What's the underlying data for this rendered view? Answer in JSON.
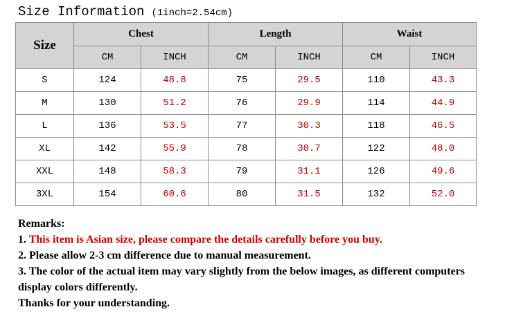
{
  "header": {
    "title": "Size Information",
    "note": "(1inch=2.54cm)"
  },
  "table": {
    "size_header": "Size",
    "groups": [
      "Chest",
      "Length",
      "Waist"
    ],
    "units": [
      "CM",
      "INCH",
      "CM",
      "INCH",
      "CM",
      "INCH"
    ],
    "rows": [
      [
        "S",
        "124",
        "48.8",
        "75",
        "29.5",
        "110",
        "43.3"
      ],
      [
        "M",
        "130",
        "51.2",
        "76",
        "29.9",
        "114",
        "44.9"
      ],
      [
        "L",
        "136",
        "53.5",
        "77",
        "30.3",
        "118",
        "46.5"
      ],
      [
        "XL",
        "142",
        "55.9",
        "78",
        "30.7",
        "122",
        "48.0"
      ],
      [
        "XXL",
        "148",
        "58.3",
        "79",
        "31.1",
        "126",
        "49.6"
      ],
      [
        "3XL",
        "154",
        "60.6",
        "80",
        "31.5",
        "132",
        "52.0"
      ]
    ]
  },
  "remarks": {
    "title": "Remarks:",
    "items": [
      {
        "number": "1.",
        "text": "This item is Asian size, please compare the details carefully before you buy."
      },
      {
        "number": "2.",
        "text": "Please allow 2-3 cm difference due to manual measurement."
      },
      {
        "number": "3.",
        "text": "The color of the actual item may vary slightly from the below images, as different computers display colors differently."
      }
    ],
    "thanks": "Thanks for your understanding."
  }
}
